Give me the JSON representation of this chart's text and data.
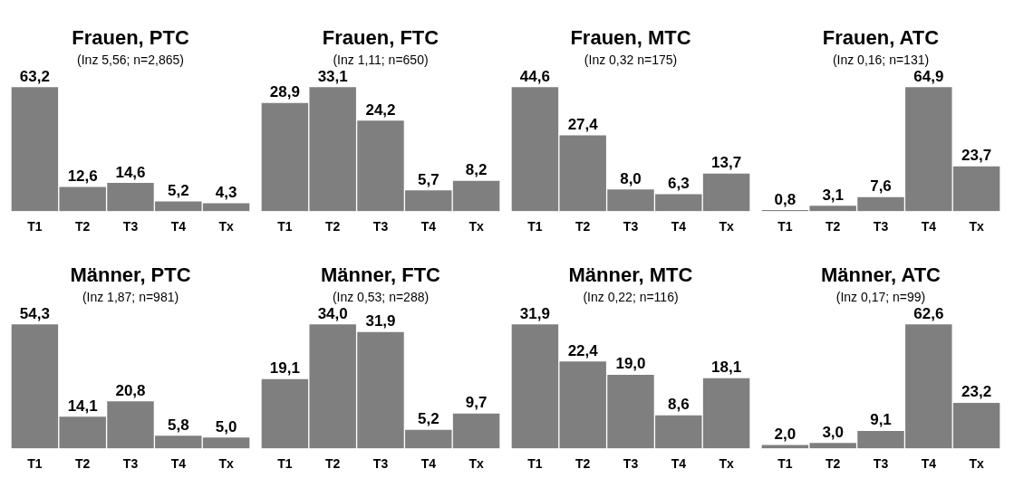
{
  "chart_data": [
    {
      "type": "bar",
      "title": "Frauen, PTC",
      "subtitle": "(Inz 5,56; n=2,865)",
      "categories": [
        "T1",
        "T2",
        "T3",
        "T4",
        "Tx"
      ],
      "values": [
        63.2,
        12.6,
        14.6,
        5.2,
        4.3
      ],
      "value_labels": [
        "63,2",
        "12,6",
        "14,6",
        "5,2",
        "4,3"
      ],
      "color": "#7f7f7f",
      "grid": false,
      "legend": false
    },
    {
      "type": "bar",
      "title": "Frauen, FTC",
      "subtitle": "(Inz 1,11; n=650)",
      "categories": [
        "T1",
        "T2",
        "T3",
        "T4",
        "Tx"
      ],
      "values": [
        28.9,
        33.1,
        24.2,
        5.7,
        8.2
      ],
      "value_labels": [
        "28,9",
        "33,1",
        "24,2",
        "5,7",
        "8,2"
      ],
      "color": "#7f7f7f",
      "grid": false,
      "legend": false
    },
    {
      "type": "bar",
      "title": "Frauen, MTC",
      "subtitle": "(Inz 0,32 n=175)",
      "categories": [
        "T1",
        "T2",
        "T3",
        "T4",
        "Tx"
      ],
      "values": [
        44.6,
        27.4,
        8.0,
        6.3,
        13.7
      ],
      "value_labels": [
        "44,6",
        "27,4",
        "8,0",
        "6,3",
        "13,7"
      ],
      "color": "#7f7f7f",
      "grid": false,
      "legend": false
    },
    {
      "type": "bar",
      "title": "Frauen, ATC",
      "subtitle": "(Inz 0,16; n=131)",
      "categories": [
        "T1",
        "T2",
        "T3",
        "T4",
        "Tx"
      ],
      "values": [
        0.8,
        3.1,
        7.6,
        64.9,
        23.7
      ],
      "value_labels": [
        "0,8",
        "3,1",
        "7,6",
        "64,9",
        "23,7"
      ],
      "color": "#7f7f7f",
      "grid": false,
      "legend": false
    },
    {
      "type": "bar",
      "title": "Männer, PTC",
      "subtitle": "(Inz 1,87; n=981)",
      "categories": [
        "T1",
        "T2",
        "T3",
        "T4",
        "Tx"
      ],
      "values": [
        54.3,
        14.1,
        20.8,
        5.8,
        5.0
      ],
      "value_labels": [
        "54,3",
        "14,1",
        "20,8",
        "5,8",
        "5,0"
      ],
      "color": "#7f7f7f",
      "grid": false,
      "legend": false
    },
    {
      "type": "bar",
      "title": "Männer, FTC",
      "subtitle": "(Inz 0,53; n=288)",
      "categories": [
        "T1",
        "T2",
        "T3",
        "T4",
        "Tx"
      ],
      "values": [
        19.1,
        34.0,
        31.9,
        5.2,
        9.7
      ],
      "value_labels": [
        "19,1",
        "34,0",
        "31,9",
        "5,2",
        "9,7"
      ],
      "color": "#7f7f7f",
      "grid": false,
      "legend": false
    },
    {
      "type": "bar",
      "title": "Männer, MTC",
      "subtitle": "(Inz 0,22; n=116)",
      "categories": [
        "T1",
        "T2",
        "T3",
        "T4",
        "Tx"
      ],
      "values": [
        31.9,
        22.4,
        19.0,
        8.6,
        18.1
      ],
      "value_labels": [
        "31,9",
        "22,4",
        "19,0",
        "8,6",
        "18,1"
      ],
      "color": "#7f7f7f",
      "grid": false,
      "legend": false
    },
    {
      "type": "bar",
      "title": "Männer, ATC",
      "subtitle": "(Inz 0,17; n=99)",
      "categories": [
        "T1",
        "T2",
        "T3",
        "T4",
        "Tx"
      ],
      "values": [
        2.0,
        3.0,
        9.1,
        62.6,
        23.2
      ],
      "value_labels": [
        "2,0",
        "3,0",
        "9,1",
        "62,6",
        "23,2"
      ],
      "color": "#7f7f7f",
      "grid": false,
      "legend": false
    }
  ]
}
